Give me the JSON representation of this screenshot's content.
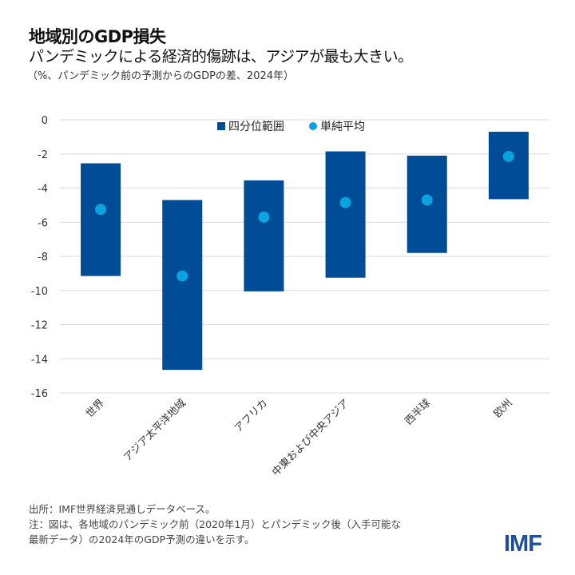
{
  "title": "地域別のGDP損失",
  "subtitle": "パンデミックによる経済的傷跡は、アジアが最も大きい。",
  "unit_note": "（%、パンデミック前の予測からのGDPの差、2024年）",
  "chart_data": {
    "type": "floating-bar-with-points",
    "categories": [
      "世界",
      "アジア太平洋地域",
      "アフリカ",
      "中東および中央アジア",
      "西半球",
      "欧州"
    ],
    "series": [
      {
        "name": "四分位範囲",
        "kind": "range",
        "color": "#004c97",
        "values": [
          [
            -2.55,
            -9.15
          ],
          [
            -4.7,
            -14.65
          ],
          [
            -3.55,
            -10.05
          ],
          [
            -1.85,
            -9.25
          ],
          [
            -2.1,
            -7.8
          ],
          [
            -0.7,
            -4.65
          ]
        ]
      },
      {
        "name": "単純平均",
        "kind": "point",
        "color": "#0aa3e0",
        "values": [
          -5.25,
          -9.15,
          -5.7,
          -4.85,
          -4.7,
          -2.15
        ]
      }
    ],
    "yticks": [
      0,
      -2,
      -4,
      -6,
      -8,
      -10,
      -12,
      -14,
      -16
    ],
    "ylim": [
      -16,
      0
    ],
    "grid": true,
    "legend": "top-center"
  },
  "footer": {
    "source": "出所：IMF世界経済見通しデータベース。",
    "note_line1": "注：図は、各地域のパンデミック前（2020年1月）とパンデミック後（入手可能な",
    "note_line2": "最新データ）の2024年のGDP予測の違いを示す。"
  },
  "logo": "IMF"
}
